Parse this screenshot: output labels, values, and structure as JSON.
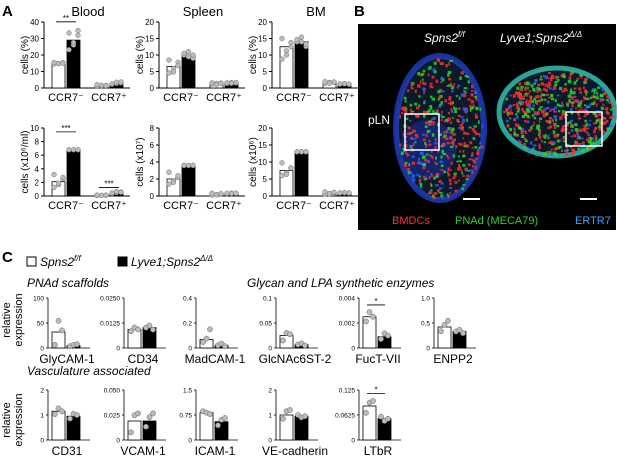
{
  "panel_letters": [
    "A",
    "B",
    "C"
  ],
  "legend": {
    "control_label": "Spns2",
    "control_sup": "f/f",
    "ko_label": "Lyve1;Spns2",
    "ko_sup": "Δ/Δ"
  },
  "section_titles": {
    "pnad": "PNAd scaffolds",
    "glycan": "Glycan and LPA synthetic enzymes",
    "vasc": "Vasculature associated"
  },
  "shared_ylabel_c": [
    "relative",
    "expression"
  ],
  "image_panel": {
    "left_title": "Spns2",
    "left_title_sup": "f/f",
    "right_title": "Lyve1;Spns2",
    "right_title_sup": "Δ/Δ",
    "row_label": "pLN",
    "stain_red": "BMDCs",
    "stain_green": "PNAd (MECA79)",
    "stain_blue": "ERTR7",
    "color_red": "#ff2020",
    "color_green": "#20d020",
    "color_blue": "#40a0ff"
  },
  "colors": {
    "control": "#ffffff",
    "ko": "#000000",
    "dot": "#bbbbbb"
  },
  "chart_data": [
    {
      "type": "bar",
      "panel": "A",
      "title": "Blood",
      "ylabel": "cells (%)",
      "ylim": [
        0,
        40
      ],
      "yticks": [
        "0",
        "10",
        "20",
        "30",
        "40"
      ],
      "categories": [
        "CCR7⁻",
        "CCR7⁺"
      ],
      "series": [
        {
          "values": [
            15,
            1.5
          ]
        },
        {
          "values": [
            29,
            2.8
          ]
        }
      ],
      "sig": [
        {
          "cat": 0,
          "label": "**"
        }
      ]
    },
    {
      "type": "bar",
      "panel": "A",
      "title": "Spleen",
      "ylabel": "cells (%)",
      "ylim": [
        0,
        20
      ],
      "yticks": [
        "0",
        "5",
        "10",
        "15",
        "20"
      ],
      "categories": [
        "CCR7⁻",
        "CCR7⁺"
      ],
      "series": [
        {
          "values": [
            6.5,
            1.3
          ]
        },
        {
          "values": [
            10,
            1.5
          ]
        }
      ],
      "sig": []
    },
    {
      "type": "bar",
      "panel": "A",
      "title": "BM",
      "ylabel": "cells (%)",
      "ylim": [
        0,
        20
      ],
      "yticks": [
        "0",
        "5",
        "10",
        "15",
        "20"
      ],
      "categories": [
        "CCR7⁻",
        "CCR7⁺"
      ],
      "series": [
        {
          "values": [
            12.5,
            1.6
          ]
        },
        {
          "values": [
            14,
            1.2
          ]
        }
      ],
      "sig": []
    },
    {
      "type": "bar",
      "panel": "A",
      "title": "",
      "ylabel": "cells (x10⁶/ml)",
      "ylim": [
        0,
        10
      ],
      "yticks": [
        "0",
        "2",
        "4",
        "6",
        "8",
        "10"
      ],
      "categories": [
        "CCR7⁻",
        "CCR7⁺"
      ],
      "series": [
        {
          "values": [
            2.1,
            0.1
          ]
        },
        {
          "values": [
            6.8,
            0.5
          ]
        }
      ],
      "sig": [
        {
          "cat": 0,
          "label": "***"
        },
        {
          "cat": 1,
          "label": "***"
        }
      ]
    },
    {
      "type": "bar",
      "panel": "A",
      "title": "",
      "ylabel": "cells (x10⁷)",
      "ylim": [
        0,
        8
      ],
      "yticks": [
        "0",
        "2",
        "4",
        "6",
        "8"
      ],
      "categories": [
        "CCR7⁻",
        "CCR7⁺"
      ],
      "series": [
        {
          "values": [
            2.0,
            0.2
          ]
        },
        {
          "values": [
            3.6,
            0.3
          ]
        }
      ],
      "sig": []
    },
    {
      "type": "bar",
      "panel": "A",
      "title": "",
      "ylabel": "cells (x10⁶)",
      "ylim": [
        0,
        20
      ],
      "yticks": [
        "0",
        "5",
        "10",
        "15",
        "20"
      ],
      "categories": [
        "CCR7⁻",
        "CCR7⁺"
      ],
      "series": [
        {
          "values": [
            7.5,
            0.8
          ]
        },
        {
          "values": [
            13,
            0.9
          ]
        }
      ],
      "sig": []
    },
    {
      "type": "bar",
      "panel": "C",
      "name": "GlyCAM-1",
      "ylim": [
        0,
        100
      ],
      "yticks": [
        "0",
        "50",
        "100"
      ],
      "values": [
        32,
        5
      ],
      "sig": ""
    },
    {
      "type": "bar",
      "panel": "C",
      "name": "CD34",
      "ylim": [
        0,
        0.025
      ],
      "yticks": [
        "0",
        "0.0125",
        "0.0250"
      ],
      "values": [
        0.0093,
        0.0102
      ],
      "sig": ""
    },
    {
      "type": "bar",
      "panel": "C",
      "name": "MadCAM-1",
      "ylim": [
        0,
        0.4
      ],
      "yticks": [
        "0",
        "0.2",
        "0.4"
      ],
      "values": [
        0.068,
        0.022
      ],
      "sig": ""
    },
    {
      "type": "bar",
      "panel": "C",
      "name": "GlcNAc6ST-2",
      "ylim": [
        0,
        0.1
      ],
      "yticks": [
        "0",
        "0.05",
        "0.1"
      ],
      "values": [
        0.025,
        0.007
      ],
      "sig": ""
    },
    {
      "type": "bar",
      "panel": "C",
      "name": "FucT-VII",
      "ylim": [
        0,
        0.004
      ],
      "yticks": [
        "0",
        "0.002",
        "0.004"
      ],
      "values": [
        0.0025,
        0.0009
      ],
      "sig": "*"
    },
    {
      "type": "bar",
      "panel": "C",
      "name": "ENPP2",
      "ylim": [
        0,
        1.0
      ],
      "yticks": [
        "0",
        "0.5",
        "1.0"
      ],
      "values": [
        0.42,
        0.33
      ],
      "sig": ""
    },
    {
      "type": "bar",
      "panel": "C",
      "name": "CD31",
      "ylim": [
        0,
        2
      ],
      "yticks": [
        "0",
        "1",
        "2"
      ],
      "values": [
        1.15,
        0.95
      ],
      "sig": ""
    },
    {
      "type": "bar",
      "panel": "C",
      "name": "VCAM-1",
      "ylim": [
        0,
        0.05
      ],
      "yticks": [
        "0",
        "0.025",
        "0.050"
      ],
      "values": [
        0.019,
        0.019
      ],
      "sig": ""
    },
    {
      "type": "bar",
      "panel": "C",
      "name": "ICAM-1",
      "ylim": [
        0,
        1.5
      ],
      "yticks": [
        "0",
        "0.75",
        "1.5"
      ],
      "values": [
        0.82,
        0.55
      ],
      "sig": ""
    },
    {
      "type": "bar",
      "panel": "C",
      "name": "VE-cadherin",
      "ylim": [
        0,
        2
      ],
      "yticks": [
        "0",
        "1",
        "2"
      ],
      "values": [
        1.0,
        0.95
      ],
      "sig": ""
    },
    {
      "type": "bar",
      "panel": "C",
      "name": "LTbR",
      "ylim": [
        0,
        0.125
      ],
      "yticks": [
        "0",
        "0.0625",
        "0.125"
      ],
      "values": [
        0.085,
        0.053
      ],
      "sig": "*"
    }
  ]
}
